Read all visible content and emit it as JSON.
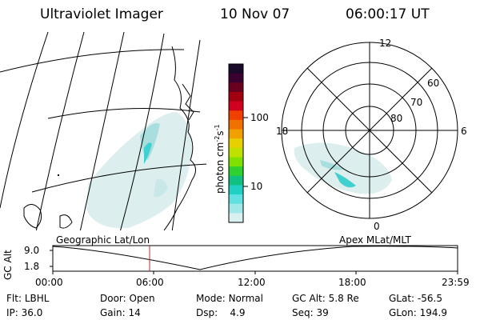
{
  "header": {
    "instrument": "Ultraviolet Imager",
    "date": "10 Nov 07",
    "time": "06:00:17 UT"
  },
  "colorbar": {
    "unit": "photon cm",
    "unit_exp1": "-2",
    "unit_s": "s",
    "unit_exp2": "-1",
    "ticks": [
      "100",
      "10"
    ],
    "colors": [
      "#1a0a2a",
      "#3a0030",
      "#6a0020",
      "#a00010",
      "#d00020",
      "#f04000",
      "#f07000",
      "#f0a000",
      "#e8d000",
      "#c0e000",
      "#80e000",
      "#30d030",
      "#10c080",
      "#20d0c0",
      "#60e0e0",
      "#a0e8e8",
      "#d8f0f0"
    ]
  },
  "polar": {
    "mlt_labels": {
      "top": "12",
      "left": "18",
      "right": "6",
      "bottom": "0"
    },
    "lat_labels": [
      "60",
      "70",
      "80"
    ]
  },
  "timeline": {
    "ylabel": "GC Alt",
    "ymax": "9.0",
    "ymin": "1.8",
    "left_title": "Geographic Lat/Lon",
    "right_title": "Apex MLat/MLT",
    "x_ticks": [
      "00:00",
      "06:00",
      "12:00",
      "18:00",
      "23:59"
    ],
    "marker_color": "#b03030"
  },
  "info": {
    "row1": [
      {
        "label": "Flt:",
        "value": "LBHL"
      },
      {
        "label": "Door:",
        "value": "Open"
      },
      {
        "label": "Mode:",
        "value": "Normal"
      },
      {
        "label": "GC Alt:",
        "value": "5.8 Re"
      },
      {
        "label": "GLat:",
        "value": "-56.5"
      }
    ],
    "row2": [
      {
        "label": "IP:",
        "value": "36.0"
      },
      {
        "label": "Gain:",
        "value": "14"
      },
      {
        "label": "Dsp:",
        "value": "4.9"
      },
      {
        "label": "Seq:",
        "value": "39"
      },
      {
        "label": "GLon:",
        "value": "194.9"
      }
    ]
  }
}
